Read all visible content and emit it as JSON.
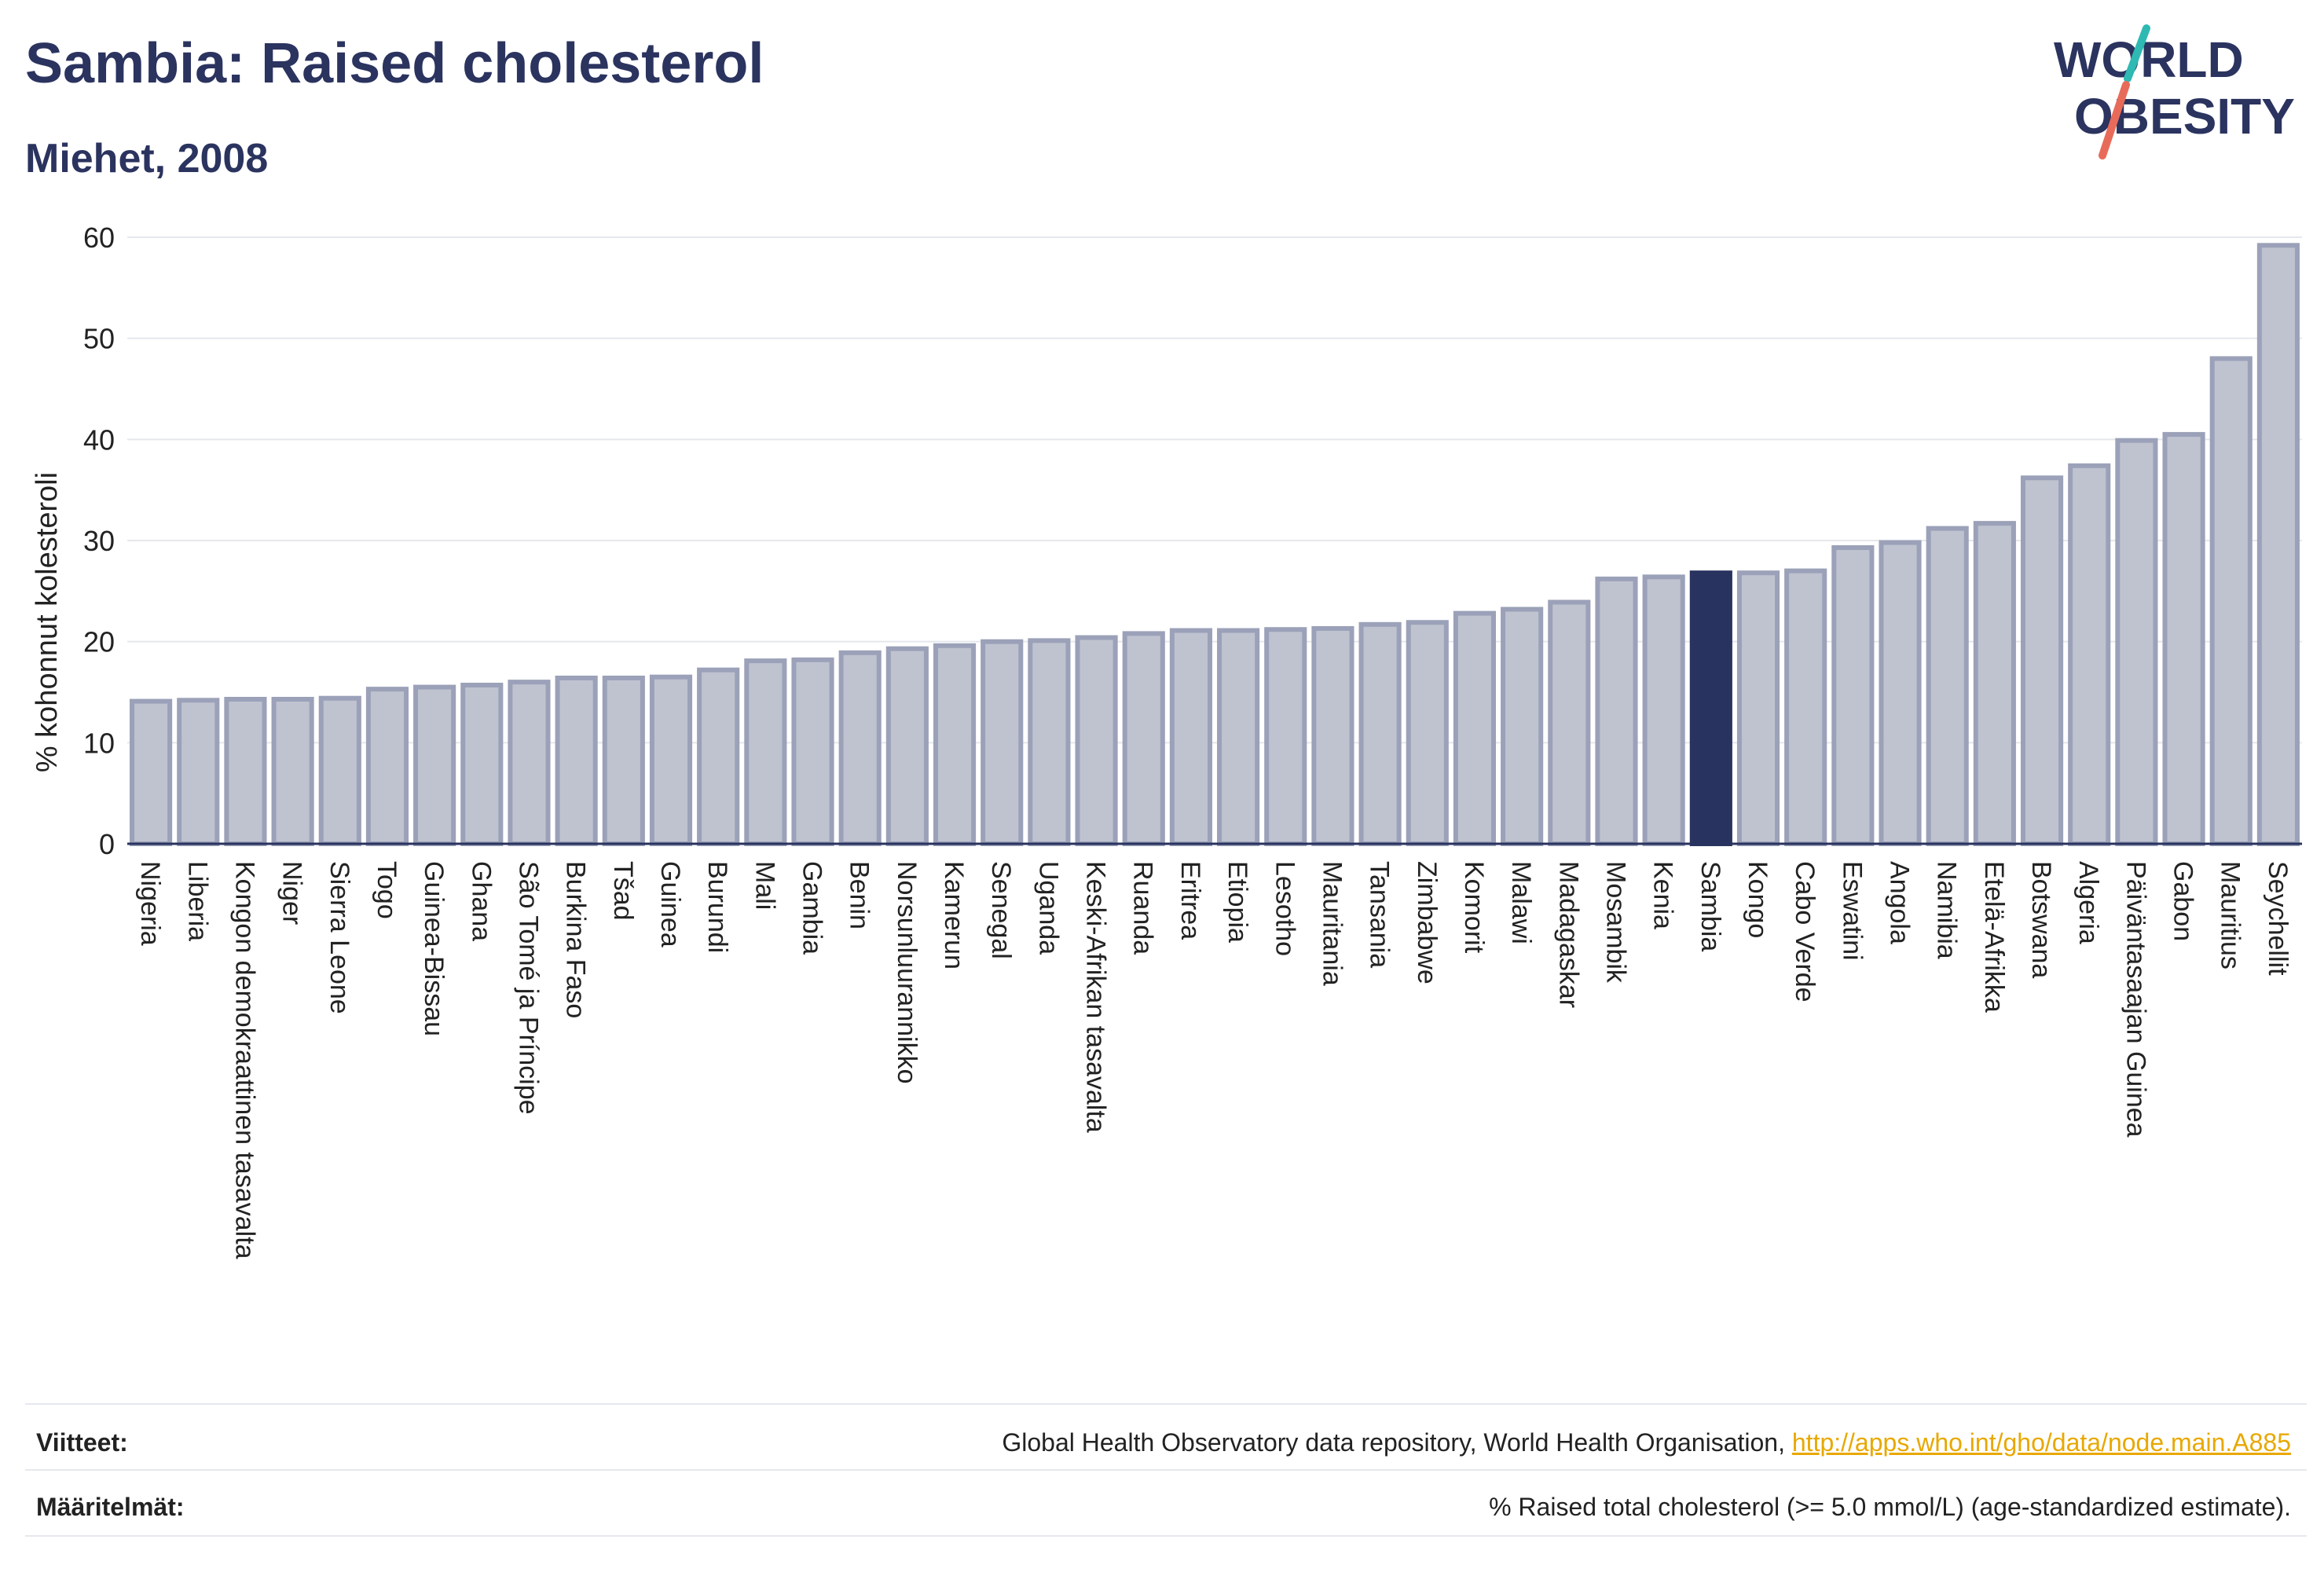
{
  "header": {
    "title": "Sambia: Raised cholesterol",
    "subtitle": "Miehet, 2008",
    "logo_line1": "WORLD",
    "logo_line2": "OBESITY"
  },
  "colors": {
    "bar": "#bfc3d0",
    "bar_stroke": "#9ba1b8",
    "highlight": "#29335f",
    "text": "#2b335f",
    "grid": "#e5e7ec",
    "logo_teal": "#2fb9b3",
    "logo_coral": "#e86b5a",
    "link": "#e8a800"
  },
  "chart_data": {
    "type": "bar",
    "ylabel": "% kohonnut kolesteroli",
    "ylim": [
      0,
      60
    ],
    "yticks": [
      0,
      10,
      20,
      30,
      40,
      50,
      60
    ],
    "grid": true,
    "highlight": "Sambia",
    "categories": [
      "Nigeria",
      "Liberia",
      "Kongon demokraattinen tasavalta",
      "Niger",
      "Sierra Leone",
      "Togo",
      "Guinea-Bissau",
      "Ghana",
      "São Tomé ja Príncipe",
      "Burkina Faso",
      "Tšad",
      "Guinea",
      "Burundi",
      "Mali",
      "Gambia",
      "Benin",
      "Norsunluurannikko",
      "Kamerun",
      "Senegal",
      "Uganda",
      "Keski-Afrikan tasavalta",
      "Ruanda",
      "Eritrea",
      "Etiopia",
      "Lesotho",
      "Mauritania",
      "Tansania",
      "Zimbabwe",
      "Komorit",
      "Malawi",
      "Madagaskar",
      "Mosambik",
      "Kenia",
      "Sambia",
      "Kongo",
      "Cabo Verde",
      "Eswatini",
      "Angola",
      "Namibia",
      "Etelä-Afrikka",
      "Botswana",
      "Algeria",
      "Päiväntasaajan Guinea",
      "Gabon",
      "Mauritius",
      "Seychellit"
    ],
    "values": [
      14.1,
      14.2,
      14.3,
      14.3,
      14.4,
      15.3,
      15.5,
      15.7,
      16.0,
      16.4,
      16.4,
      16.5,
      17.2,
      18.1,
      18.2,
      18.9,
      19.3,
      19.6,
      20.0,
      20.1,
      20.4,
      20.8,
      21.1,
      21.1,
      21.2,
      21.3,
      21.7,
      21.9,
      22.8,
      23.2,
      23.9,
      26.2,
      26.4,
      26.8,
      26.8,
      27.0,
      29.3,
      29.8,
      31.2,
      31.7,
      36.2,
      37.4,
      39.9,
      40.5,
      48.0,
      59.2
    ]
  },
  "footer": {
    "references_label": "Viitteet:",
    "references_text": "Global Health Observatory data repository, World Health Organisation, ",
    "references_link": "http://apps.who.int/gho/data/node.main.A885",
    "definitions_label": "Määritelmät:",
    "definitions_text": "% Raised total cholesterol (>= 5.0 mmol/L) (age-standardized estimate)."
  }
}
